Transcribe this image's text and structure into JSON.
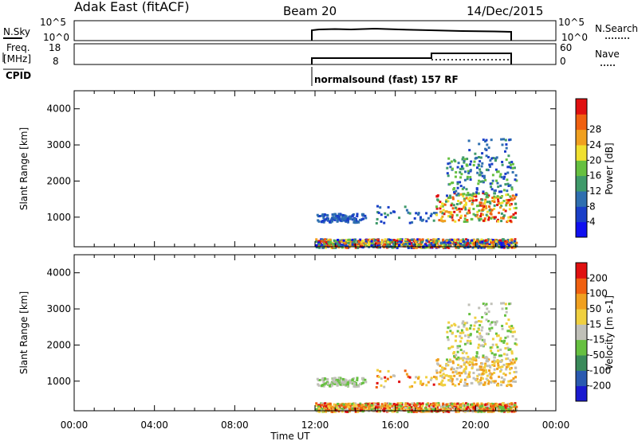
{
  "header": {
    "station": "Adak East (fitACF)",
    "beam": "Beam 20",
    "date": "14/Dec/2015"
  },
  "top_panels": {
    "nsky_label": "N.Sky",
    "nsky_ticks": [
      "10^5",
      "10^0"
    ],
    "nsearch_label": "N.Search",
    "freq_label_line1": "Freq.",
    "freq_label_line2": "[MHz]",
    "freq_ticks": [
      "18",
      "8"
    ],
    "nave_ticks": [
      "60",
      "0"
    ],
    "nave_label": "Nave",
    "cpid_label": "CPID",
    "cpid_text": "normalsound (fast) 157 RF"
  },
  "chart_data": [
    {
      "type": "heatmap",
      "name": "power",
      "xlabel": "",
      "ylabel": "Slant Range [km]",
      "xlim": [
        0,
        24
      ],
      "ylim": [
        180,
        4500
      ],
      "ytick_labels": [
        "1000",
        "2000",
        "3000",
        "4000"
      ],
      "yticks": [
        1000,
        2000,
        3000,
        4000
      ],
      "colorbar": {
        "label": "Power [dB]",
        "range": [
          0,
          32
        ],
        "tick_labels": [
          "4",
          "8",
          "12",
          "16",
          "20",
          "24",
          "28"
        ],
        "ticks": [
          4,
          8,
          12,
          16,
          20,
          24,
          28
        ],
        "colors": [
          "#1010f0",
          "#1a3fc8",
          "#2f6fb0",
          "#3f9a6a",
          "#66c040",
          "#f0e030",
          "#f0a020",
          "#f06010",
          "#e01010"
        ]
      }
    },
    {
      "type": "heatmap",
      "name": "velocity",
      "xlabel": "Time UT",
      "ylabel": "Slant Range [km]",
      "xlim": [
        0,
        24
      ],
      "ylim": [
        180,
        4500
      ],
      "xtick_labels": [
        "00:00",
        "04:00",
        "08:00",
        "12:00",
        "16:00",
        "20:00",
        "00:00"
      ],
      "xticks": [
        0,
        4,
        8,
        12,
        16,
        20,
        24
      ],
      "ytick_labels": [
        "1000",
        "2000",
        "3000",
        "4000"
      ],
      "yticks": [
        1000,
        2000,
        3000,
        4000
      ],
      "colorbar": {
        "label": "Velocity [m s-1]",
        "tick_labels": [
          "200",
          "100",
          "50",
          "15",
          "-15",
          "-50",
          "-100",
          "-200"
        ],
        "colors": [
          "#1a1ad0",
          "#2a5ab0",
          "#3a8a5a",
          "#66c040",
          "#c0c0b8",
          "#f0d040",
          "#f0a020",
          "#f06010",
          "#e01010"
        ]
      }
    }
  ]
}
